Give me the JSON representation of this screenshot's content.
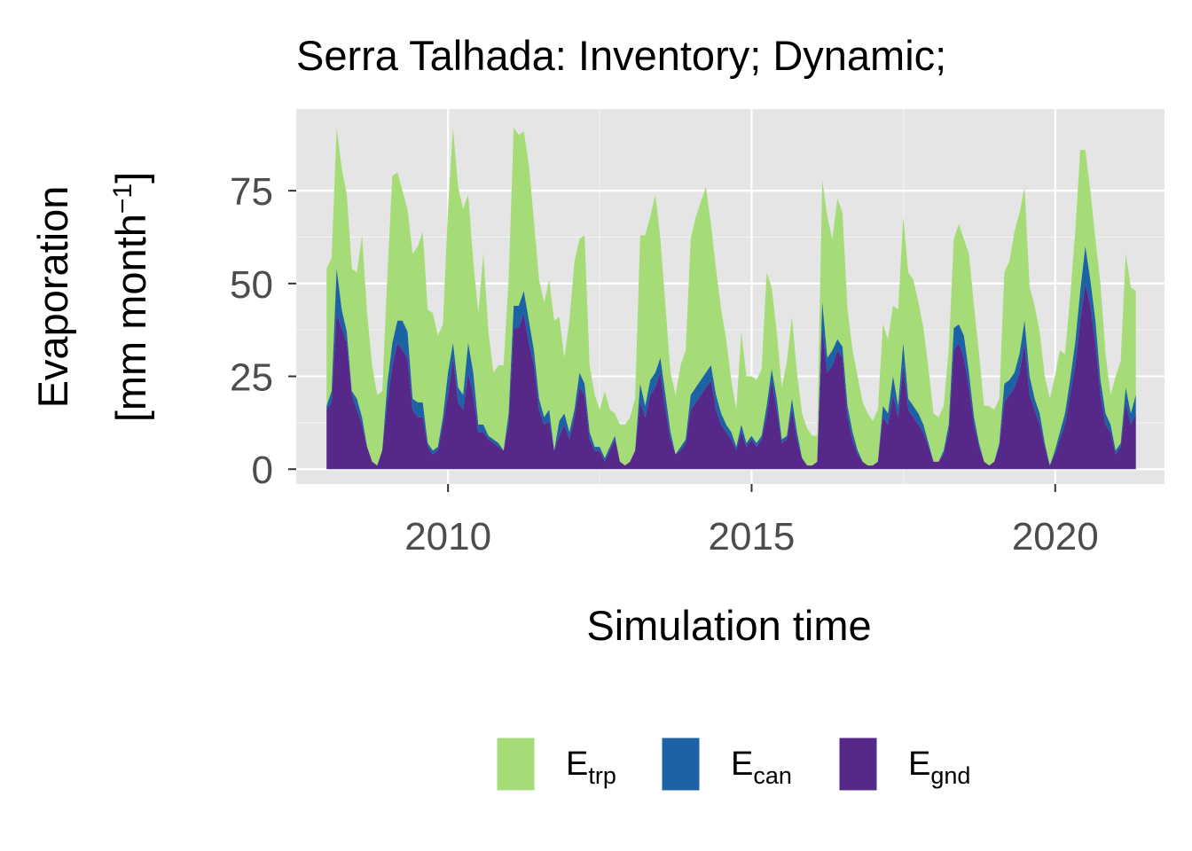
{
  "chart_data": {
    "type": "area",
    "stacked": true,
    "title": "Serra Talhada: Inventory; Dynamic;",
    "xlabel": "Simulation time",
    "ylabel": [
      "Evaporation",
      "[mm month",
      "−1",
      "]"
    ],
    "xlim": [
      2007.5,
      2021.8
    ],
    "ylim": [
      -4,
      97
    ],
    "x_ticks": [
      2010,
      2015,
      2020
    ],
    "y_ticks": [
      0,
      25,
      50,
      75
    ],
    "grid": true,
    "legend_position": "bottom",
    "x_start": 2008.0,
    "x_step": 0.0833,
    "series": [
      {
        "name": "E",
        "sub": "gnd",
        "color": "#56288a",
        "values": [
          16,
          18,
          42,
          38,
          34,
          20,
          16,
          12,
          6,
          2,
          1,
          5,
          18,
          28,
          34,
          32,
          30,
          16,
          14,
          14,
          6,
          4,
          5,
          12,
          20,
          30,
          18,
          16,
          26,
          20,
          10,
          10,
          8,
          7,
          6,
          5,
          12,
          38,
          38,
          42,
          34,
          28,
          16,
          12,
          13,
          5,
          9,
          12,
          8,
          14,
          22,
          20,
          8,
          5,
          5,
          2,
          5,
          8,
          2,
          1,
          2,
          5,
          18,
          14,
          20,
          22,
          26,
          16,
          8,
          4,
          5,
          7,
          16,
          18,
          20,
          22,
          24,
          16,
          12,
          10,
          8,
          5,
          10,
          6,
          8,
          6,
          8,
          14,
          24,
          16,
          7,
          8,
          16,
          8,
          3,
          1,
          1,
          2,
          38,
          26,
          28,
          32,
          30,
          14,
          8,
          4,
          2,
          1,
          1,
          2,
          14,
          12,
          20,
          14,
          28,
          16,
          14,
          12,
          10,
          6,
          2,
          2,
          4,
          10,
          32,
          34,
          30,
          22,
          12,
          6,
          2,
          1,
          2,
          6,
          18,
          20,
          22,
          26,
          34,
          20,
          16,
          12,
          6,
          1,
          4,
          8,
          12,
          20,
          28,
          40,
          50,
          44,
          34,
          20,
          12,
          10,
          4,
          6,
          18,
          12,
          15
        ]
      },
      {
        "name": "E",
        "sub": "can",
        "color": "#1b63a5",
        "values": [
          1,
          3,
          12,
          5,
          3,
          1,
          3,
          2,
          0,
          0,
          0,
          0,
          5,
          6,
          6,
          8,
          7,
          3,
          4,
          4,
          1,
          1,
          1,
          2,
          6,
          4,
          4,
          4,
          8,
          6,
          2,
          2,
          1,
          1,
          1,
          0,
          3,
          6,
          6,
          6,
          6,
          4,
          3,
          2,
          3,
          0,
          4,
          3,
          2,
          2,
          4,
          3,
          2,
          1,
          1,
          1,
          1,
          1,
          0,
          0,
          0,
          0,
          5,
          3,
          4,
          4,
          4,
          4,
          2,
          0,
          1,
          1,
          4,
          4,
          4,
          4,
          4,
          4,
          3,
          2,
          2,
          1,
          2,
          1,
          1,
          1,
          1,
          3,
          3,
          3,
          1,
          1,
          3,
          2,
          0,
          0,
          0,
          0,
          7,
          4,
          4,
          3,
          3,
          3,
          2,
          1,
          0,
          0,
          0,
          0,
          3,
          3,
          5,
          3,
          6,
          3,
          3,
          3,
          2,
          1,
          0,
          0,
          1,
          2,
          6,
          5,
          6,
          4,
          2,
          1,
          0,
          0,
          0,
          1,
          5,
          4,
          4,
          5,
          6,
          5,
          3,
          3,
          1,
          0,
          1,
          2,
          3,
          4,
          6,
          8,
          10,
          7,
          6,
          4,
          3,
          2,
          1,
          1,
          4,
          3,
          5
        ]
      },
      {
        "name": "E",
        "sub": "trp",
        "color": "#a6dc78",
        "values": [
          37,
          36,
          38,
          38,
          37,
          33,
          34,
          49,
          36,
          26,
          19,
          16,
          29,
          45,
          40,
          35,
          33,
          39,
          42,
          46,
          36,
          37,
          30,
          25,
          44,
          58,
          54,
          50,
          40,
          30,
          30,
          46,
          28,
          18,
          21,
          23,
          36,
          48,
          46,
          43,
          42,
          35,
          32,
          31,
          35,
          35,
          28,
          15,
          30,
          40,
          36,
          40,
          18,
          14,
          10,
          18,
          10,
          6,
          10,
          11,
          12,
          14,
          40,
          46,
          44,
          48,
          32,
          24,
          16,
          16,
          22,
          24,
          42,
          46,
          48,
          50,
          38,
          34,
          28,
          23,
          14,
          10,
          25,
          18,
          16,
          17,
          18,
          36,
          22,
          18,
          14,
          20,
          22,
          16,
          12,
          10,
          8,
          7,
          33,
          38,
          30,
          38,
          36,
          26,
          22,
          20,
          16,
          14,
          12,
          14,
          22,
          20,
          19,
          26,
          34,
          34,
          34,
          30,
          26,
          20,
          13,
          12,
          12,
          20,
          24,
          27,
          26,
          32,
          30,
          24,
          15,
          16,
          14,
          12,
          30,
          32,
          38,
          38,
          36,
          24,
          25,
          22,
          18,
          18,
          20,
          22,
          16,
          22,
          30,
          38,
          26,
          24,
          22,
          26,
          16,
          8,
          20,
          22,
          36,
          34,
          28
        ]
      }
    ]
  }
}
